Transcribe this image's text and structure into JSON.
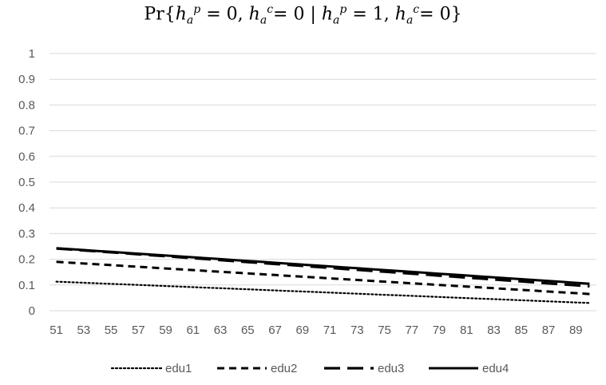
{
  "chart_data": {
    "type": "line",
    "title": "Pr{h_a^p = 0, h_a^c = 0 | h_a^p = 1, h_a^c = 0}",
    "title_parts": {
      "open": "Pr{",
      "h": "h",
      "sub_a": "a",
      "sup_p": "p",
      "sup_c": "c",
      "eq0": " = 0, ",
      "eq0b": "= 0 | ",
      "eq1": " = 1, ",
      "eq0c": "= 0}"
    },
    "xlabel": "",
    "ylabel": "",
    "x": [
      51,
      52,
      53,
      54,
      55,
      56,
      57,
      58,
      59,
      60,
      61,
      62,
      63,
      64,
      65,
      66,
      67,
      68,
      69,
      70,
      71,
      72,
      73,
      74,
      75,
      76,
      77,
      78,
      79,
      80,
      81,
      82,
      83,
      84,
      85,
      86,
      87,
      88,
      89,
      90
    ],
    "xtick_labels": [
      "51",
      "53",
      "55",
      "57",
      "59",
      "61",
      "63",
      "65",
      "67",
      "69",
      "71",
      "73",
      "75",
      "77",
      "79",
      "81",
      "83",
      "85",
      "87",
      "89"
    ],
    "ytick_labels": [
      "0",
      "0.1",
      "0.2",
      "0.3",
      "0.4",
      "0.5",
      "0.6",
      "0.7",
      "0.8",
      "0.9",
      "1"
    ],
    "ylim": [
      0,
      1
    ],
    "grid": "horizontal",
    "legend_position": "bottom",
    "series": [
      {
        "name": "edu1",
        "dash": "dotted",
        "start": 0.113,
        "end": 0.03
      },
      {
        "name": "edu2",
        "dash": "dashed",
        "start": 0.19,
        "end": 0.065
      },
      {
        "name": "edu3",
        "dash": "longdash",
        "start": 0.242,
        "end": 0.095
      },
      {
        "name": "edu4",
        "dash": "solid",
        "start": 0.243,
        "end": 0.105
      }
    ],
    "colors": {
      "line": "#000000",
      "grid": "#d9d9d9",
      "text": "#595959"
    }
  }
}
